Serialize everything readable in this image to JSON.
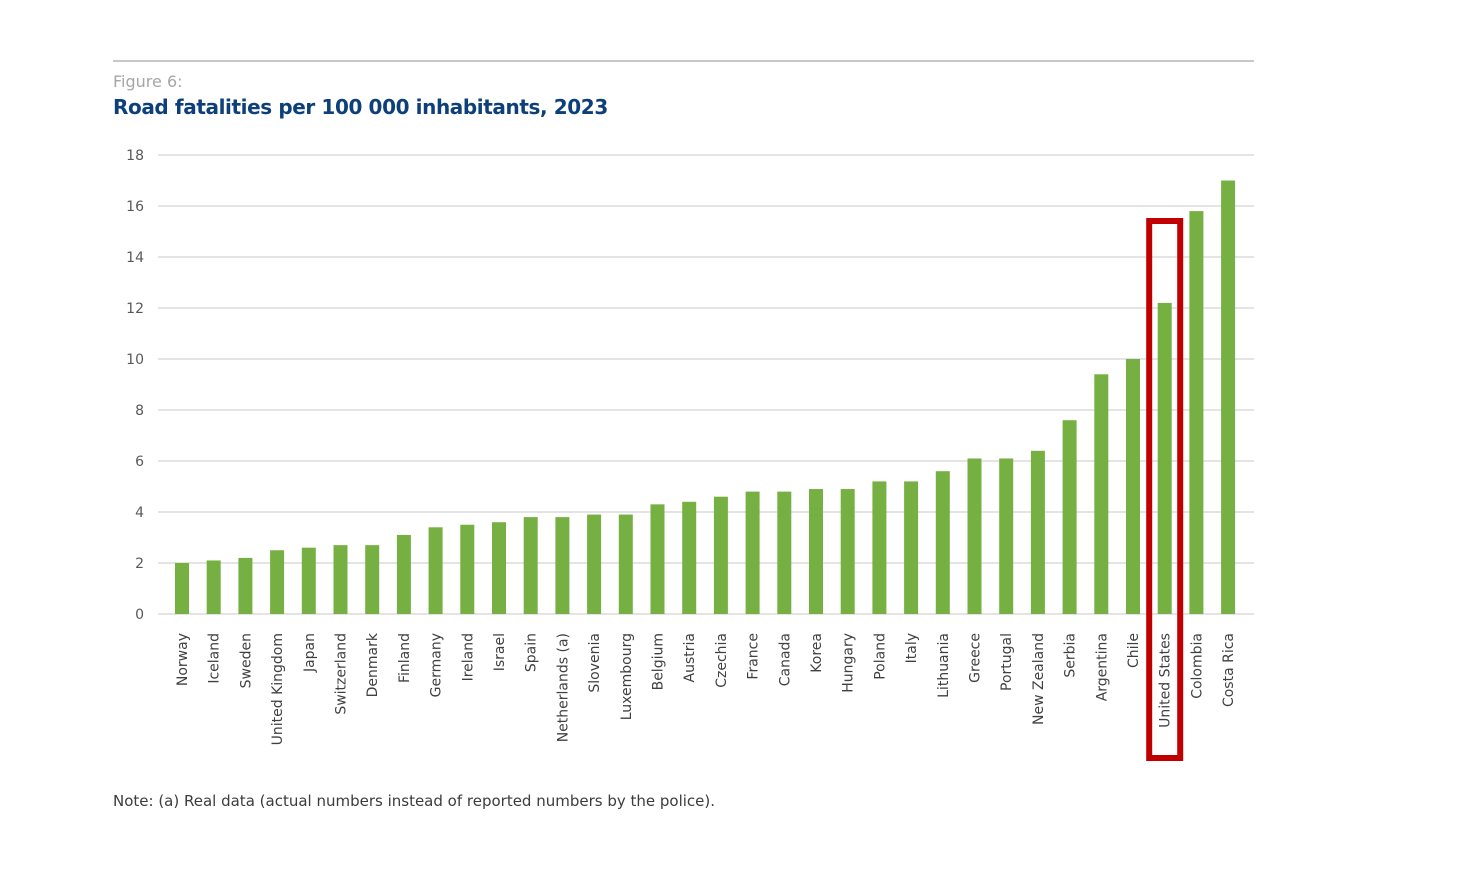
{
  "figure_label": "Figure 6:",
  "note": "Note: (a) Real data (actual numbers instead of reported numbers by the police).",
  "colors": {
    "bar": "#76b043",
    "highlight": "#c00000",
    "grid": "#c8c8c8",
    "title": "#0d3f7a"
  },
  "chart_data": {
    "type": "bar",
    "title": "Road fatalities per 100 000 inhabitants, 2023",
    "xlabel": "",
    "ylabel": "",
    "ylim": [
      0,
      18
    ],
    "yticks": [
      0,
      2,
      4,
      6,
      8,
      10,
      12,
      14,
      16,
      18
    ],
    "grid": true,
    "categories": [
      "Norway",
      "Iceland",
      "Sweden",
      "United Kingdom",
      "Japan",
      "Switzerland",
      "Denmark",
      "Finland",
      "Germany",
      "Ireland",
      "Israel",
      "Spain",
      "Netherlands (a)",
      "Slovenia",
      "Luxembourg",
      "Belgium",
      "Austria",
      "Czechia",
      "France",
      "Canada",
      "Korea",
      "Hungary",
      "Poland",
      "Italy",
      "Lithuania",
      "Greece",
      "Portugal",
      "New Zealand",
      "Serbia",
      "Argentina",
      "Chile",
      "United States",
      "Colombia",
      "Costa Rica"
    ],
    "values": [
      2.0,
      2.1,
      2.2,
      2.5,
      2.6,
      2.7,
      2.7,
      3.1,
      3.4,
      3.5,
      3.6,
      3.8,
      3.8,
      3.9,
      3.9,
      4.3,
      4.4,
      4.6,
      4.8,
      4.8,
      4.9,
      4.9,
      5.2,
      5.2,
      5.6,
      6.1,
      6.1,
      6.4,
      7.6,
      9.4,
      10.0,
      12.2,
      15.8,
      17.0
    ],
    "highlighted_category": "United States"
  }
}
